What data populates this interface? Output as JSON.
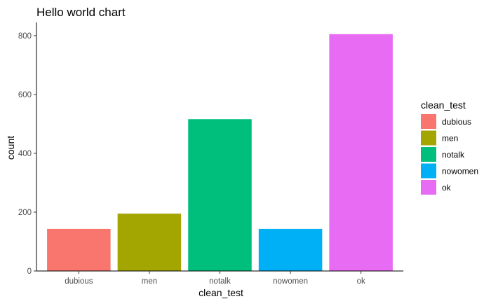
{
  "chart_data": {
    "type": "bar",
    "title": "Hello world chart",
    "xlabel": "clean_test",
    "ylabel": "count",
    "categories": [
      "dubious",
      "men",
      "notalk",
      "nowomen",
      "ok"
    ],
    "values": [
      143,
      195,
      516,
      143,
      805
    ],
    "colors": [
      "#F8766D",
      "#A3A500",
      "#00BF7D",
      "#00B0F6",
      "#E76BF3"
    ],
    "ylim": [
      0,
      845
    ],
    "yticks": [
      0,
      200,
      400,
      600,
      800
    ],
    "ytick_labels": [
      "0",
      "200",
      "400",
      "600",
      "800"
    ],
    "grid": false,
    "legend": {
      "title": "clean_test",
      "placement": "right",
      "entries": [
        "dubious",
        "men",
        "notalk",
        "nowomen",
        "ok"
      ]
    }
  }
}
